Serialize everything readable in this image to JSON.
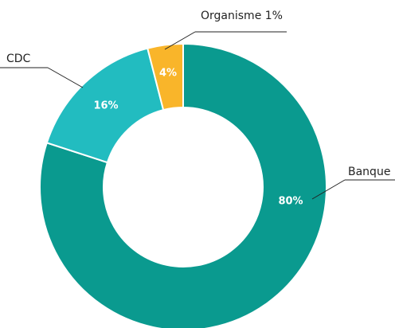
{
  "chart_data": {
    "type": "donut",
    "categories": [
      "Banque",
      "CDC",
      "Organisme 1%"
    ],
    "values": [
      80,
      16,
      4
    ],
    "value_labels": [
      "80%",
      "16%",
      "4%"
    ],
    "colors": [
      "#0a9a8f",
      "#22bcc0",
      "#f9b52a"
    ]
  }
}
